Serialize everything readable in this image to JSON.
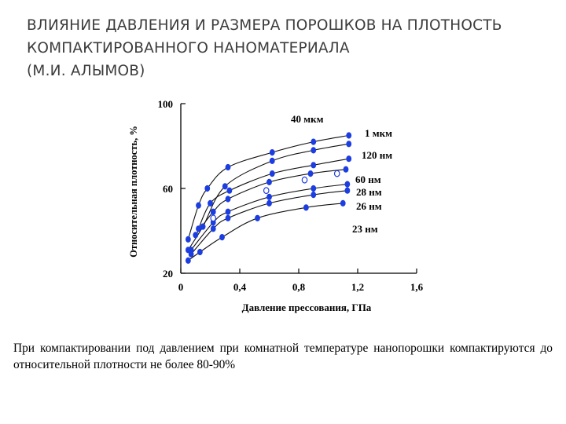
{
  "slide": {
    "title_line1": "ВЛИЯНИЕ ДАВЛЕНИЯ И РАЗМЕРА ПОРОШКОВ НА ПЛОТНОСТЬ",
    "title_line2": "КОМПАКТИРОВАННОГО НАНОМАТЕРИАЛА",
    "title_line3": "(М.И. АЛЫМОВ)",
    "caption": "При компактировании под давлением при комнатной температуре нанопорошки компактируются до относительной плотности не более 80-90%"
  },
  "chart_data": {
    "type": "line",
    "xlabel": "Давление прессования, ГПа",
    "ylabel": "Относительная плотность, %",
    "xlim": [
      0,
      1.6
    ],
    "ylim": [
      20,
      100
    ],
    "x_ticks": [
      "0",
      "0,4",
      "0,8",
      "1,2",
      "1,6"
    ],
    "y_ticks": [
      "20",
      "60",
      "100"
    ],
    "colors": {
      "marker": "#1c3de0",
      "curve": "#111111",
      "axis": "#000000",
      "text": "#000000"
    },
    "series": [
      {
        "name": "40 мкм",
        "x": [
          0.05,
          0.12,
          0.18,
          0.32,
          0.62,
          0.9,
          1.14
        ],
        "y": [
          36,
          52,
          60,
          70,
          77,
          82,
          85
        ]
      },
      {
        "name": "1 мкм",
        "x": [
          0.05,
          0.15,
          0.3,
          0.62,
          0.9,
          1.14
        ],
        "y": [
          31,
          42,
          61,
          73,
          78,
          81
        ]
      },
      {
        "name": "120 нм",
        "x": [
          0.12,
          0.2,
          0.33,
          0.62,
          0.9,
          1.14
        ],
        "y": [
          41,
          53,
          59,
          67,
          71,
          74
        ]
      },
      {
        "name": "60 нм",
        "x": [
          0.1,
          0.22,
          0.32,
          0.6,
          0.88,
          1.12
        ],
        "y": [
          38,
          49,
          55,
          63,
          67,
          69
        ]
      },
      {
        "name": "28 нм",
        "x": [
          0.07,
          0.22,
          0.32,
          0.6,
          0.9,
          1.13
        ],
        "y": [
          31,
          44,
          49,
          56,
          60,
          62
        ]
      },
      {
        "name": "26 нм",
        "x": [
          0.07,
          0.22,
          0.32,
          0.6,
          0.9,
          1.13
        ],
        "y": [
          29,
          41,
          46,
          53,
          57,
          59
        ]
      },
      {
        "name": "23 нм",
        "x": [
          0.05,
          0.13,
          0.28,
          0.52,
          0.85,
          1.1
        ],
        "y": [
          26,
          30,
          37,
          46,
          51,
          53
        ]
      }
    ],
    "open_markers": [
      {
        "x": 0.22,
        "y": 46
      },
      {
        "x": 0.58,
        "y": 59
      },
      {
        "x": 0.84,
        "y": 64
      },
      {
        "x": 1.06,
        "y": 67
      }
    ]
  }
}
